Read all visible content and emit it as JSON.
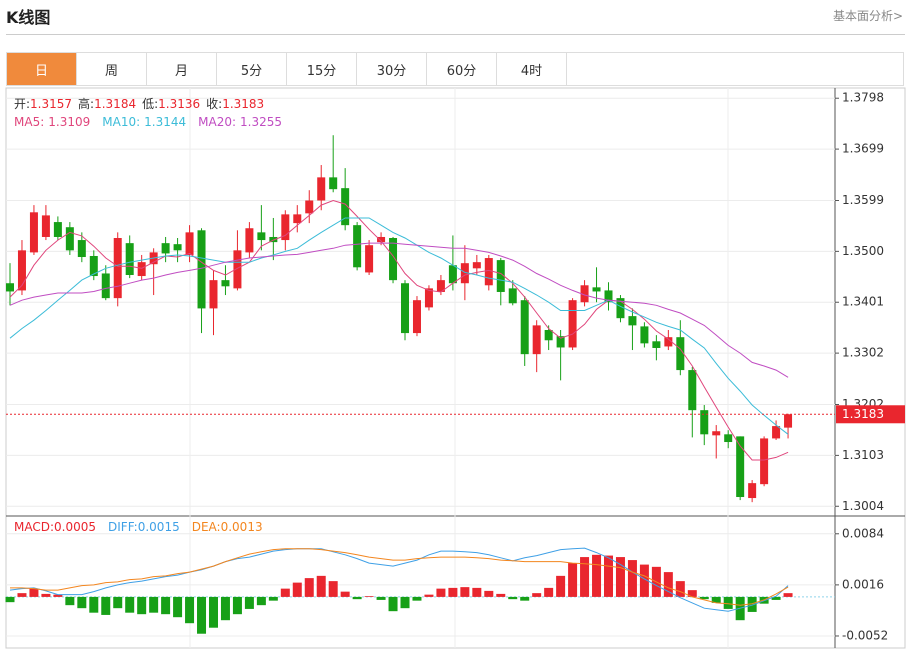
{
  "header": {
    "title": "K线图",
    "link": "基本面分析>"
  },
  "tabs": {
    "items": [
      "日",
      "周",
      "月",
      "5分",
      "15分",
      "30分",
      "60分",
      "4时"
    ],
    "active": 0
  },
  "chart_data": [
    {
      "type": "candlestick",
      "up_color": "#e9262e",
      "down_color": "#17a017",
      "legend": [
        {
          "label": "开:",
          "value": 1.3157
        },
        {
          "label": "高:",
          "value": 1.3184
        },
        {
          "label": "低:",
          "value": 1.3136
        },
        {
          "label": "收:",
          "value": 1.3183
        }
      ],
      "open": [
        1.3438,
        1.3424,
        1.3498,
        1.3528,
        1.3557,
        1.3547,
        1.3522,
        1.3491,
        1.3457,
        1.3409,
        1.3516,
        1.3452,
        1.3475,
        1.3516,
        1.3514,
        1.3493,
        1.3541,
        1.3389,
        1.3444,
        1.3428,
        1.3498,
        1.3537,
        1.3528,
        1.3522,
        1.3555,
        1.3574,
        1.3599,
        1.3644,
        1.3623,
        1.3551,
        1.3459,
        1.3518,
        1.3526,
        1.3438,
        1.3341,
        1.3391,
        1.3421,
        1.3473,
        1.3438,
        1.3467,
        1.3434,
        1.3483,
        1.3428,
        1.3405,
        1.33,
        1.3347,
        1.3335,
        1.3313,
        1.3401,
        1.343,
        1.3424,
        1.3409,
        1.3374,
        1.3354,
        1.3325,
        1.3315,
        1.3333,
        1.3269,
        1.3191,
        1.3142,
        1.3144,
        1.314,
        1.302,
        1.3047,
        1.3136,
        1.3157
      ],
      "close": [
        1.3422,
        1.3502,
        1.3576,
        1.357,
        1.3528,
        1.3502,
        1.3489,
        1.3452,
        1.3409,
        1.3526,
        1.3454,
        1.3479,
        1.3498,
        1.3496,
        1.3502,
        1.3537,
        1.3389,
        1.3444,
        1.3432,
        1.3502,
        1.3545,
        1.3522,
        1.3518,
        1.3572,
        1.3572,
        1.3599,
        1.3644,
        1.3621,
        1.3551,
        1.3469,
        1.3512,
        1.3528,
        1.3444,
        1.3341,
        1.3405,
        1.3428,
        1.3444,
        1.3438,
        1.3477,
        1.3479,
        1.3487,
        1.3421,
        1.3399,
        1.33,
        1.3356,
        1.3327,
        1.3313,
        1.3405,
        1.3434,
        1.3422,
        1.3401,
        1.337,
        1.3356,
        1.3321,
        1.3312,
        1.3333,
        1.3269,
        1.3191,
        1.3144,
        1.315,
        1.3129,
        1.3022,
        1.3049,
        1.3136,
        1.316,
        1.3183
      ],
      "high": [
        1.3477,
        1.3522,
        1.359,
        1.359,
        1.3568,
        1.3557,
        1.3537,
        1.3502,
        1.3473,
        1.3537,
        1.3531,
        1.3493,
        1.3506,
        1.3528,
        1.3526,
        1.3551,
        1.3545,
        1.3463,
        1.3473,
        1.3541,
        1.3557,
        1.359,
        1.3565,
        1.358,
        1.359,
        1.3619,
        1.3668,
        1.3726,
        1.3662,
        1.3557,
        1.3522,
        1.3537,
        1.3528,
        1.3444,
        1.3413,
        1.3434,
        1.3454,
        1.3531,
        1.3512,
        1.3493,
        1.3493,
        1.3487,
        1.3444,
        1.3413,
        1.3366,
        1.3356,
        1.3347,
        1.3409,
        1.3444,
        1.3469,
        1.344,
        1.3415,
        1.3389,
        1.3362,
        1.3337,
        1.3347,
        1.3366,
        1.3275,
        1.3201,
        1.3162,
        1.3152,
        1.314,
        1.3055,
        1.314,
        1.3171,
        1.3184
      ],
      "low": [
        1.3395,
        1.3415,
        1.3493,
        1.3522,
        1.3522,
        1.3493,
        1.3479,
        1.3444,
        1.3405,
        1.3393,
        1.3448,
        1.3444,
        1.3415,
        1.3479,
        1.3479,
        1.3479,
        1.3341,
        1.3337,
        1.3415,
        1.3424,
        1.3487,
        1.3502,
        1.3483,
        1.3502,
        1.3537,
        1.3555,
        1.358,
        1.3615,
        1.3541,
        1.3463,
        1.3454,
        1.3512,
        1.3438,
        1.3327,
        1.3335,
        1.3385,
        1.3415,
        1.3424,
        1.3405,
        1.3454,
        1.3424,
        1.3395,
        1.3395,
        1.3277,
        1.3265,
        1.3308,
        1.3249,
        1.3308,
        1.3393,
        1.3401,
        1.3385,
        1.3362,
        1.3308,
        1.3313,
        1.3288,
        1.3308,
        1.3259,
        1.3138,
        1.3123,
        1.3097,
        1.3117,
        1.3016,
        1.3012,
        1.3043,
        1.3133,
        1.3136
      ],
      "series": [
        {
          "name": "MA5:",
          "color": "#e0467c",
          "value": 1.3109,
          "values": [
            1.3411,
            1.3434,
            1.3473,
            1.3502,
            1.3522,
            1.3537,
            1.353,
            1.351,
            1.3487,
            1.3471,
            1.3471,
            1.3467,
            1.3479,
            1.3491,
            1.3489,
            1.3496,
            1.3479,
            1.3463,
            1.3454,
            1.3467,
            1.3479,
            1.351,
            1.3522,
            1.3531,
            1.3551,
            1.357,
            1.359,
            1.3599,
            1.3592,
            1.3568,
            1.3543,
            1.352,
            1.3491,
            1.3457,
            1.3434,
            1.3424,
            1.3421,
            1.3438,
            1.3454,
            1.3459,
            1.3463,
            1.3457,
            1.3438,
            1.3411,
            1.338,
            1.335,
            1.3331,
            1.3339,
            1.3358,
            1.3387,
            1.3405,
            1.3403,
            1.3387,
            1.3368,
            1.3345,
            1.3329,
            1.331,
            1.3277,
            1.3236,
            1.3197,
            1.3158,
            1.3121,
            1.3094,
            1.3094,
            1.3099,
            1.3109
          ]
        },
        {
          "name": "MA10:",
          "color": "#3cbcd8",
          "value": 1.3144,
          "values": [
            1.3331,
            1.335,
            1.3366,
            1.3385,
            1.3405,
            1.3424,
            1.3444,
            1.3456,
            1.3467,
            1.3473,
            1.3479,
            1.3483,
            1.3487,
            1.3491,
            1.3493,
            1.3491,
            1.3487,
            1.3483,
            1.3479,
            1.3479,
            1.3479,
            1.3487,
            1.3493,
            1.35,
            1.3506,
            1.3522,
            1.3537,
            1.3551,
            1.3565,
            1.3565,
            1.3565,
            1.3551,
            1.3537,
            1.3526,
            1.3512,
            1.3498,
            1.3487,
            1.3473,
            1.3459,
            1.3454,
            1.3448,
            1.3444,
            1.344,
            1.3428,
            1.3415,
            1.3401,
            1.3385,
            1.3385,
            1.3385,
            1.3395,
            1.3405,
            1.3393,
            1.3382,
            1.3372,
            1.3362,
            1.3354,
            1.3347,
            1.3329,
            1.3312,
            1.3282,
            1.3253,
            1.3228,
            1.3201,
            1.3181,
            1.3162,
            1.3144
          ]
        },
        {
          "name": "MA20:",
          "color": "#c04dc2",
          "value": 1.3255,
          "values": [
            1.3395,
            1.3405,
            1.3411,
            1.3415,
            1.3419,
            1.3419,
            1.3419,
            1.3422,
            1.3428,
            1.3432,
            1.3438,
            1.3444,
            1.3448,
            1.3454,
            1.3459,
            1.3463,
            1.3467,
            1.3473,
            1.3479,
            1.3483,
            1.3487,
            1.3489,
            1.3491,
            1.3493,
            1.3494,
            1.3498,
            1.3502,
            1.3506,
            1.3512,
            1.3514,
            1.3516,
            1.3516,
            1.3516,
            1.3514,
            1.3512,
            1.351,
            1.3508,
            1.3506,
            1.3506,
            1.3502,
            1.3498,
            1.3491,
            1.3483,
            1.3471,
            1.3457,
            1.3446,
            1.3434,
            1.3424,
            1.3415,
            1.3409,
            1.3405,
            1.3403,
            1.3401,
            1.3399,
            1.3395,
            1.3387,
            1.338,
            1.3368,
            1.3356,
            1.3337,
            1.3317,
            1.3302,
            1.3284,
            1.3277,
            1.3269,
            1.3255
          ]
        }
      ],
      "ylim": [
        1.2987,
        1.3814
      ],
      "yticks": [
        1.3798,
        1.3699,
        1.3599,
        {
          "value": 1.35,
          "label": "1.3500"
        },
        1.3401,
        1.3302,
        1.3202,
        1.3103,
        1.3004
      ]
    },
    {
      "type": "macd",
      "up_color": "#e9262e",
      "down_color": "#17a017",
      "series": [
        {
          "name": "MACD:",
          "color": "#e9262e",
          "value": 0.0005,
          "kind": "bar",
          "values": [
            -0.0007,
            0.0005,
            0.0011,
            0.0004,
            0.0003,
            -0.0011,
            -0.0015,
            -0.0021,
            -0.0024,
            -0.0015,
            -0.0021,
            -0.0023,
            -0.0021,
            -0.0023,
            -0.0027,
            -0.0035,
            -0.0049,
            -0.0041,
            -0.0031,
            -0.0023,
            -0.0016,
            -0.0011,
            -0.0005,
            0.0011,
            0.0019,
            0.0025,
            0.0028,
            0.0021,
            0.0007,
            -0.0003,
            0.0001,
            -0.0004,
            -0.0019,
            -0.0015,
            -0.0005,
            0.0003,
            0.0011,
            0.0012,
            0.0013,
            0.0012,
            0.0008,
            0.0004,
            -0.0003,
            -0.0005,
            0.0005,
            0.0012,
            0.0028,
            0.0045,
            0.0053,
            0.0056,
            0.0055,
            0.0053,
            0.0049,
            0.0043,
            0.004,
            0.0033,
            0.0021,
            0.0009,
            -0.0003,
            -0.0008,
            -0.0016,
            -0.0031,
            -0.002,
            -0.0009,
            -0.0004,
            0.0005
          ]
        },
        {
          "name": "DIFF:",
          "color": "#3fa0e6",
          "value": 0.0015,
          "values": [
            0.0009,
            0.0011,
            0.0012,
            0.0008,
            0.0003,
            0.0003,
            0.0003,
            0.0007,
            0.0012,
            0.0016,
            0.0019,
            0.0021,
            0.0024,
            0.0027,
            0.0029,
            0.0033,
            0.0036,
            0.0041,
            0.0047,
            0.0051,
            0.0053,
            0.0057,
            0.0061,
            0.0063,
            0.0064,
            0.0064,
            0.0064,
            0.006,
            0.0056,
            0.0051,
            0.0045,
            0.0043,
            0.0041,
            0.0045,
            0.0049,
            0.0056,
            0.0061,
            0.0061,
            0.006,
            0.0059,
            0.0056,
            0.0052,
            0.0048,
            0.0052,
            0.0055,
            0.0059,
            0.0063,
            0.0064,
            0.0065,
            0.0059,
            0.0052,
            0.0043,
            0.0033,
            0.0024,
            0.0015,
            0.0007,
            -0.0001,
            -0.0008,
            -0.0015,
            -0.0017,
            -0.0019,
            -0.0015,
            -0.0011,
            -0.0005,
            0.0001,
            0.0015
          ]
        },
        {
          "name": "DEA:",
          "color": "#f3861f",
          "value": 0.0013,
          "values": [
            0.0012,
            0.0012,
            0.0011,
            0.0009,
            0.0009,
            0.0012,
            0.0015,
            0.0016,
            0.0019,
            0.002,
            0.0023,
            0.0024,
            0.0027,
            0.0028,
            0.0031,
            0.0033,
            0.0037,
            0.0041,
            0.0047,
            0.0052,
            0.0057,
            0.006,
            0.0063,
            0.0064,
            0.0064,
            0.0064,
            0.0063,
            0.0061,
            0.0059,
            0.0056,
            0.0053,
            0.0051,
            0.0049,
            0.0049,
            0.0051,
            0.0052,
            0.0053,
            0.0053,
            0.0053,
            0.0052,
            0.0051,
            0.0049,
            0.0048,
            0.0047,
            0.0047,
            0.0047,
            0.0047,
            0.0045,
            0.0044,
            0.0043,
            0.0041,
            0.0039,
            0.0033,
            0.0028,
            0.002,
            0.0012,
            0.0007,
            0,
            -0.0004,
            -0.0008,
            -0.0009,
            -0.0011,
            -0.0009,
            -0.0004,
            0.0004,
            0.0013
          ]
        }
      ],
      "ylim": [
        -0.0068,
        0.0105
      ],
      "yticks": [
        0.0084,
        0.0016,
        -0.0052
      ]
    }
  ]
}
